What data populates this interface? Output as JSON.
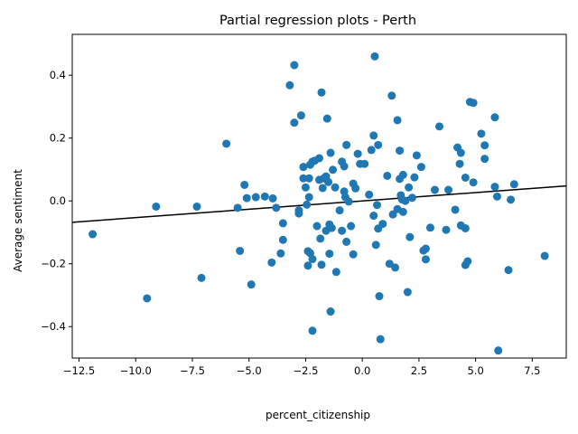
{
  "colors": {
    "point": "#1f77b4",
    "fit_line": "#000000",
    "frame": "#000000",
    "background": "#ffffff"
  },
  "chart_data": {
    "type": "scatter",
    "title": "Partial regression plots - Perth",
    "xlabel": "percent_citizenship",
    "ylabel": "Average sentiment",
    "xlim": [
      -12.8,
      9.0
    ],
    "ylim": [
      -0.5,
      0.53
    ],
    "x_ticks": [
      -12.5,
      -10.0,
      -7.5,
      -5.0,
      -2.5,
      0.0,
      2.5,
      5.0,
      7.5
    ],
    "x_tick_labels": [
      "−12.5",
      "−10.0",
      "−7.5",
      "−5.0",
      "−2.5",
      "0.0",
      "2.5",
      "5.0",
      "7.5"
    ],
    "y_ticks": [
      -0.4,
      -0.2,
      0.0,
      0.2,
      0.4
    ],
    "y_tick_labels": [
      "−0.4",
      "−0.2",
      "0.0",
      "0.2",
      "0.4"
    ],
    "grid": false,
    "legend": "none",
    "fit_line": {
      "slope": 0.00532,
      "intercept": 0.0,
      "x": [
        -12.8,
        9.0
      ]
    },
    "points": [
      {
        "x": -11.9,
        "y": -0.106
      },
      {
        "x": -9.5,
        "y": -0.31
      },
      {
        "x": -9.1,
        "y": -0.018
      },
      {
        "x": -7.3,
        "y": -0.018
      },
      {
        "x": -7.1,
        "y": -0.245
      },
      {
        "x": -6.0,
        "y": 0.182
      },
      {
        "x": -5.5,
        "y": -0.022
      },
      {
        "x": -5.4,
        "y": -0.159
      },
      {
        "x": -5.2,
        "y": 0.051
      },
      {
        "x": -5.1,
        "y": 0.009
      },
      {
        "x": -4.9,
        "y": -0.266
      },
      {
        "x": -4.7,
        "y": 0.012
      },
      {
        "x": -4.3,
        "y": 0.014
      },
      {
        "x": -4.0,
        "y": -0.196
      },
      {
        "x": -3.95,
        "y": 0.008
      },
      {
        "x": -3.8,
        "y": -0.022
      },
      {
        "x": -3.6,
        "y": -0.167
      },
      {
        "x": -3.5,
        "y": -0.071
      },
      {
        "x": -3.5,
        "y": -0.124
      },
      {
        "x": -3.2,
        "y": 0.368
      },
      {
        "x": -3.0,
        "y": 0.432
      },
      {
        "x": -3.0,
        "y": 0.249
      },
      {
        "x": -2.8,
        "y": -0.03
      },
      {
        "x": -2.8,
        "y": -0.04
      },
      {
        "x": -2.7,
        "y": 0.272
      },
      {
        "x": -2.6,
        "y": 0.108
      },
      {
        "x": -2.6,
        "y": 0.072
      },
      {
        "x": -2.5,
        "y": 0.043
      },
      {
        "x": -2.45,
        "y": -0.012
      },
      {
        "x": -2.4,
        "y": -0.16
      },
      {
        "x": -2.4,
        "y": -0.206
      },
      {
        "x": -2.35,
        "y": 0.072
      },
      {
        "x": -2.35,
        "y": 0.012
      },
      {
        "x": -2.3,
        "y": -0.166
      },
      {
        "x": -2.3,
        "y": 0.115
      },
      {
        "x": -2.2,
        "y": 0.125
      },
      {
        "x": -2.2,
        "y": -0.185
      },
      {
        "x": -2.2,
        "y": -0.413
      },
      {
        "x": -2.1,
        "y": 0.128
      },
      {
        "x": -2.0,
        "y": -0.08
      },
      {
        "x": -1.9,
        "y": 0.136
      },
      {
        "x": -1.9,
        "y": 0.067
      },
      {
        "x": -1.85,
        "y": -0.12
      },
      {
        "x": -1.8,
        "y": 0.345
      },
      {
        "x": -1.8,
        "y": -0.203
      },
      {
        "x": -1.75,
        "y": 0.041
      },
      {
        "x": -1.7,
        "y": 0.072
      },
      {
        "x": -1.6,
        "y": 0.078
      },
      {
        "x": -1.6,
        "y": -0.095
      },
      {
        "x": -1.55,
        "y": 0.262
      },
      {
        "x": -1.5,
        "y": 0.06
      },
      {
        "x": -1.45,
        "y": -0.075
      },
      {
        "x": -1.45,
        "y": -0.168
      },
      {
        "x": -1.4,
        "y": 0.153
      },
      {
        "x": -1.4,
        "y": -0.352
      },
      {
        "x": -1.35,
        "y": -0.086
      },
      {
        "x": -1.3,
        "y": 0.099
      },
      {
        "x": -1.2,
        "y": 0.043
      },
      {
        "x": -1.15,
        "y": -0.226
      },
      {
        "x": -1.0,
        "y": -0.03
      },
      {
        "x": -0.9,
        "y": 0.125
      },
      {
        "x": -0.9,
        "y": -0.095
      },
      {
        "x": -0.8,
        "y": 0.11
      },
      {
        "x": -0.8,
        "y": 0.03
      },
      {
        "x": -0.75,
        "y": 0.012
      },
      {
        "x": -0.7,
        "y": 0.178
      },
      {
        "x": -0.7,
        "y": -0.13
      },
      {
        "x": -0.6,
        "y": -0.002
      },
      {
        "x": -0.5,
        "y": -0.08
      },
      {
        "x": -0.4,
        "y": 0.055
      },
      {
        "x": -0.4,
        "y": -0.17
      },
      {
        "x": -0.3,
        "y": 0.04
      },
      {
        "x": -0.2,
        "y": 0.15
      },
      {
        "x": -0.1,
        "y": 0.118
      },
      {
        "x": 0.1,
        "y": 0.118
      },
      {
        "x": 0.3,
        "y": 0.02
      },
      {
        "x": 0.4,
        "y": 0.162
      },
      {
        "x": 0.5,
        "y": 0.208
      },
      {
        "x": 0.5,
        "y": -0.047
      },
      {
        "x": 0.55,
        "y": 0.46
      },
      {
        "x": 0.6,
        "y": -0.14
      },
      {
        "x": 0.65,
        "y": -0.013
      },
      {
        "x": 0.7,
        "y": 0.178
      },
      {
        "x": 0.7,
        "y": -0.088
      },
      {
        "x": 0.75,
        "y": -0.303
      },
      {
        "x": 0.8,
        "y": -0.44
      },
      {
        "x": 0.9,
        "y": -0.073
      },
      {
        "x": 1.1,
        "y": 0.08
      },
      {
        "x": 1.2,
        "y": -0.2
      },
      {
        "x": 1.3,
        "y": 0.335
      },
      {
        "x": 1.35,
        "y": -0.043
      },
      {
        "x": 1.45,
        "y": -0.212
      },
      {
        "x": 1.55,
        "y": 0.257
      },
      {
        "x": 1.55,
        "y": -0.026
      },
      {
        "x": 1.65,
        "y": 0.16
      },
      {
        "x": 1.65,
        "y": 0.07
      },
      {
        "x": 1.7,
        "y": 0.018
      },
      {
        "x": 1.75,
        "y": 0.005
      },
      {
        "x": 1.8,
        "y": 0.083
      },
      {
        "x": 1.8,
        "y": -0.035
      },
      {
        "x": 1.9,
        "y": 0.0
      },
      {
        "x": 2.0,
        "y": -0.29
      },
      {
        "x": 2.05,
        "y": 0.043
      },
      {
        "x": 2.1,
        "y": -0.115
      },
      {
        "x": 2.2,
        "y": 0.01
      },
      {
        "x": 2.3,
        "y": 0.075
      },
      {
        "x": 2.4,
        "y": 0.145
      },
      {
        "x": 2.6,
        "y": 0.108
      },
      {
        "x": 2.7,
        "y": -0.158
      },
      {
        "x": 2.8,
        "y": -0.152
      },
      {
        "x": 2.8,
        "y": -0.186
      },
      {
        "x": 3.0,
        "y": -0.085
      },
      {
        "x": 3.2,
        "y": 0.035
      },
      {
        "x": 3.4,
        "y": 0.237
      },
      {
        "x": 3.7,
        "y": -0.092
      },
      {
        "x": 3.8,
        "y": 0.035
      },
      {
        "x": 4.1,
        "y": -0.028
      },
      {
        "x": 4.2,
        "y": 0.17
      },
      {
        "x": 4.3,
        "y": 0.118
      },
      {
        "x": 4.35,
        "y": 0.153
      },
      {
        "x": 4.35,
        "y": -0.078
      },
      {
        "x": 4.55,
        "y": -0.087
      },
      {
        "x": 4.55,
        "y": 0.074
      },
      {
        "x": 4.55,
        "y": -0.204
      },
      {
        "x": 4.65,
        "y": -0.192
      },
      {
        "x": 4.75,
        "y": 0.315
      },
      {
        "x": 4.9,
        "y": 0.312
      },
      {
        "x": 4.9,
        "y": 0.059
      },
      {
        "x": 5.25,
        "y": 0.214
      },
      {
        "x": 5.4,
        "y": 0.177
      },
      {
        "x": 5.4,
        "y": 0.134
      },
      {
        "x": 5.85,
        "y": 0.266
      },
      {
        "x": 5.85,
        "y": 0.045
      },
      {
        "x": 5.95,
        "y": 0.014
      },
      {
        "x": 6.0,
        "y": -0.476
      },
      {
        "x": 6.45,
        "y": -0.22
      },
      {
        "x": 6.55,
        "y": 0.004
      },
      {
        "x": 6.7,
        "y": 0.053
      },
      {
        "x": 8.05,
        "y": -0.175
      }
    ]
  }
}
